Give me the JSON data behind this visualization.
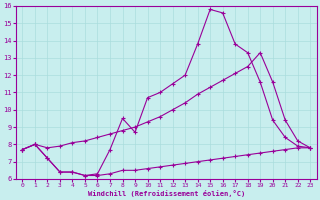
{
  "xlabel": "Windchill (Refroidissement éolien,°C)",
  "bg_color": "#c8eeee",
  "line_color": "#990099",
  "grid_color": "#aadddd",
  "xlim": [
    -0.5,
    23.5
  ],
  "ylim": [
    6,
    16
  ],
  "xticks": [
    0,
    1,
    2,
    3,
    4,
    5,
    6,
    7,
    8,
    9,
    10,
    11,
    12,
    13,
    14,
    15,
    16,
    17,
    18,
    19,
    20,
    21,
    22,
    23
  ],
  "yticks": [
    6,
    7,
    8,
    9,
    10,
    11,
    12,
    13,
    14,
    15,
    16
  ],
  "line1_x": [
    0,
    1,
    2,
    3,
    4,
    5,
    6,
    7,
    8,
    9,
    10,
    11,
    12,
    13,
    14,
    15,
    16,
    17,
    18,
    19,
    20,
    21,
    22,
    23
  ],
  "line1_y": [
    7.7,
    8.0,
    7.2,
    6.4,
    6.4,
    6.2,
    6.2,
    6.3,
    6.5,
    6.5,
    6.6,
    6.7,
    6.8,
    6.9,
    7.0,
    7.1,
    7.2,
    7.3,
    7.4,
    7.5,
    7.6,
    7.7,
    7.8,
    7.8
  ],
  "line2_x": [
    0,
    1,
    2,
    3,
    4,
    5,
    6,
    7,
    8,
    9,
    10,
    11,
    12,
    13,
    14,
    15,
    16,
    17,
    18,
    19,
    20,
    21,
    22,
    23
  ],
  "line2_y": [
    7.7,
    8.0,
    7.8,
    7.9,
    8.1,
    8.2,
    8.4,
    8.6,
    8.8,
    9.0,
    9.3,
    9.6,
    10.0,
    10.4,
    10.9,
    11.3,
    11.7,
    12.1,
    12.5,
    13.3,
    11.6,
    9.4,
    8.2,
    7.8
  ],
  "line3_x": [
    0,
    1,
    2,
    3,
    4,
    5,
    6,
    7,
    8,
    9,
    10,
    11,
    12,
    13,
    14,
    15,
    16,
    17,
    18,
    19,
    20,
    21,
    22,
    23
  ],
  "line3_y": [
    7.7,
    8.0,
    7.2,
    6.4,
    6.4,
    6.2,
    6.3,
    7.7,
    9.5,
    8.7,
    10.7,
    11.0,
    11.5,
    12.0,
    13.8,
    15.8,
    15.6,
    13.8,
    13.3,
    11.6,
    9.4,
    8.4,
    7.9,
    7.8
  ]
}
